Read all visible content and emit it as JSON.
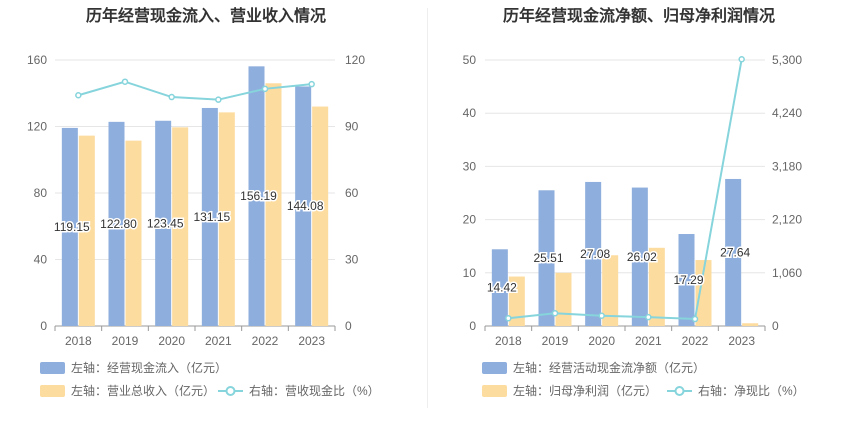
{
  "chart_data": [
    {
      "type": "bar",
      "title": "历年经营现金流入、营业收入情况",
      "categories": [
        "2018",
        "2019",
        "2020",
        "2021",
        "2022",
        "2023"
      ],
      "series": [
        {
          "name": "左轴：经营现金流入（亿元）",
          "axis": "left",
          "kind": "bar",
          "color": "#8eaedd",
          "values": [
            119.15,
            122.8,
            123.45,
            131.15,
            156.19,
            144.08
          ],
          "labels": [
            "119.15",
            "122.80",
            "123.45",
            "131.15",
            "156.19",
            "144.08"
          ]
        },
        {
          "name": "左轴：营业总收入（亿元）",
          "axis": "left",
          "kind": "bar",
          "color": "#fddca0",
          "values": [
            114.5,
            111.5,
            119.5,
            128.5,
            146.0,
            132.0
          ]
        },
        {
          "name": "右轴：营收现金比（%）",
          "axis": "right",
          "kind": "line",
          "color": "#86d4dc",
          "values": [
            104.1,
            110.2,
            103.3,
            102.1,
            107.0,
            109.1
          ]
        }
      ],
      "ylim_left": [
        0,
        160
      ],
      "yticks_left": [
        "0",
        "40",
        "80",
        "120",
        "160"
      ],
      "ylim_right": [
        0,
        120
      ],
      "yticks_right": [
        "0",
        "30",
        "60",
        "90",
        "120"
      ]
    },
    {
      "type": "bar",
      "title": "历年经营现金流净额、归母净利润情况",
      "categories": [
        "2018",
        "2019",
        "2020",
        "2021",
        "2022",
        "2023"
      ],
      "series": [
        {
          "name": "左轴：经营活动现金流净额（亿元）",
          "axis": "left",
          "kind": "bar",
          "color": "#8eaedd",
          "values": [
            14.42,
            25.51,
            27.08,
            26.02,
            17.29,
            27.64
          ],
          "labels": [
            "14.42",
            "25.51",
            "27.08",
            "26.02",
            "17.29",
            "27.64"
          ]
        },
        {
          "name": "左轴：归母净利润（亿元）",
          "axis": "left",
          "kind": "bar",
          "color": "#fddca0",
          "values": [
            9.3,
            10.0,
            13.3,
            14.7,
            12.4,
            0.52
          ]
        },
        {
          "name": "右轴：净现比（%）",
          "axis": "right",
          "kind": "line",
          "color": "#86d4dc",
          "values": [
            155,
            255,
            204,
            177,
            139,
            5315
          ]
        }
      ],
      "ylim_left": [
        0,
        50
      ],
      "yticks_left": [
        "0",
        "10",
        "20",
        "30",
        "40",
        "50"
      ],
      "ylim_right": [
        0,
        5300
      ],
      "yticks_right": [
        "0",
        "1,060",
        "2,120",
        "3,180",
        "4,240",
        "5,300"
      ]
    }
  ]
}
